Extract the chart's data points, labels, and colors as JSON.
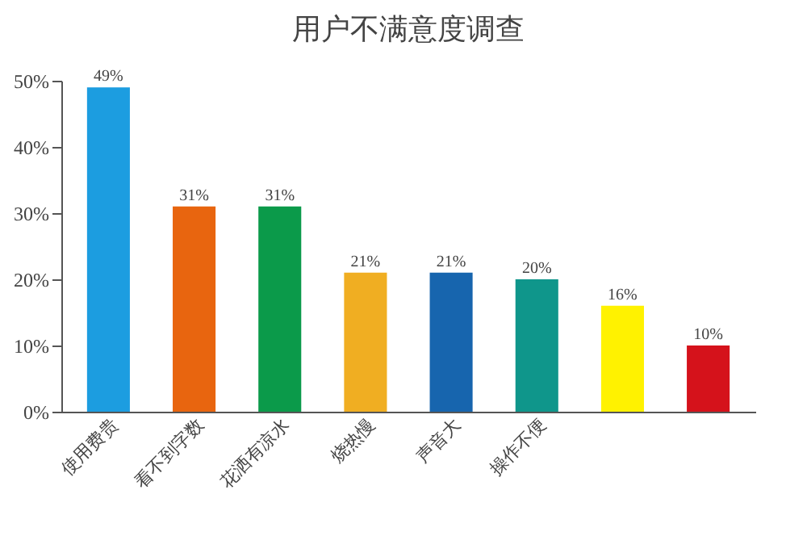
{
  "chart_data": {
    "type": "bar",
    "title": "用户不满意度调查",
    "categories": [
      "使用费贵",
      "看不到字数",
      "花洒有凉水",
      "烧热慢",
      "声音大",
      "操作不便",
      null,
      null
    ],
    "values": [
      49,
      31,
      31,
      21,
      21,
      20,
      16,
      10
    ],
    "colors": [
      "#1c9de0",
      "#e8650f",
      "#0b9a4a",
      "#f0ae22",
      "#1765ae",
      "#0f968b",
      "#fff200",
      "#d5121b"
    ],
    "value_labels": [
      "49%",
      "31%",
      "31%",
      "21%",
      "21%",
      "20%",
      "16%",
      "10%"
    ],
    "ylim": [
      0,
      50
    ],
    "yticks": [
      {
        "value": 0,
        "label": "0%"
      },
      {
        "value": 10,
        "label": "10%"
      },
      {
        "value": 20,
        "label": "20%"
      },
      {
        "value": 30,
        "label": "30%"
      },
      {
        "value": 40,
        "label": "40%"
      },
      {
        "value": 50,
        "label": "50%"
      }
    ],
    "grid": false
  }
}
